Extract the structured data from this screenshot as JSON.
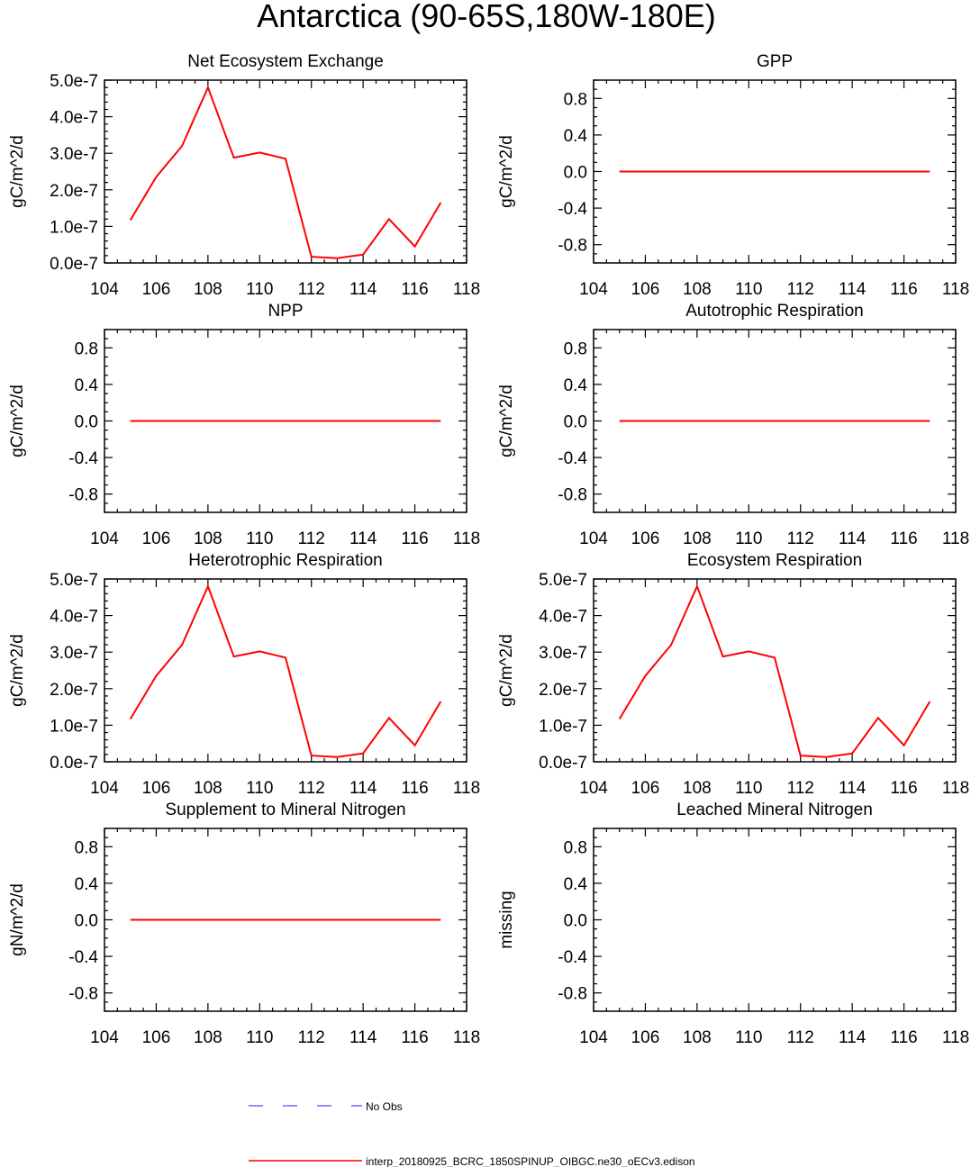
{
  "main_title": "Antarctica (90-65S,180W-180E)",
  "colors": {
    "model": "#ff0000",
    "obs": "#6a6aff",
    "axis": "#000000"
  },
  "legend": {
    "obs_label": "No Obs",
    "model_label": "interp_20180925_BCRC_1850SPINUP_OIBGC.ne30_oECv3.edison"
  },
  "chart_data": [
    {
      "type": "line",
      "title": "Net Ecosystem Exchange",
      "ylabel": "gC/m^2/d",
      "xlim": [
        104,
        118
      ],
      "ylim": [
        0,
        5e-07
      ],
      "xticks": [
        "104",
        "106",
        "108",
        "110",
        "112",
        "114",
        "116",
        "118"
      ],
      "yticks": [
        "0.0e-7",
        "1.0e-7",
        "2.0e-7",
        "3.0e-7",
        "4.0e-7",
        "5.0e-7"
      ],
      "series": [
        {
          "x": [
            105,
            106,
            107,
            108,
            109,
            110,
            111,
            112,
            113,
            114,
            115,
            116,
            117
          ],
          "values": [
            1.17e-07,
            2.35e-07,
            3.2e-07,
            4.8e-07,
            2.88e-07,
            3.02e-07,
            2.85e-07,
            1.7e-08,
            1.3e-08,
            2.3e-08,
            1.2e-07,
            4.5e-08,
            1.65e-07
          ]
        }
      ]
    },
    {
      "type": "line",
      "title": "GPP",
      "ylabel": "gC/m^2/d",
      "xlim": [
        104,
        118
      ],
      "ylim": [
        -1,
        1
      ],
      "xticks": [
        "104",
        "106",
        "108",
        "110",
        "112",
        "114",
        "116",
        "118"
      ],
      "yticks": [
        "-0.8",
        "-0.4",
        "0.0",
        "0.4",
        "0.8"
      ],
      "series": [
        {
          "x": [
            105,
            117
          ],
          "values": [
            0,
            0
          ]
        }
      ]
    },
    {
      "type": "line",
      "title": "NPP",
      "ylabel": "gC/m^2/d",
      "xlim": [
        104,
        118
      ],
      "ylim": [
        -1,
        1
      ],
      "xticks": [
        "104",
        "106",
        "108",
        "110",
        "112",
        "114",
        "116",
        "118"
      ],
      "yticks": [
        "-0.8",
        "-0.4",
        "0.0",
        "0.4",
        "0.8"
      ],
      "series": [
        {
          "x": [
            105,
            117
          ],
          "values": [
            0,
            0
          ]
        }
      ]
    },
    {
      "type": "line",
      "title": "Autotrophic Respiration",
      "ylabel": "gC/m^2/d",
      "xlim": [
        104,
        118
      ],
      "ylim": [
        -1,
        1
      ],
      "xticks": [
        "104",
        "106",
        "108",
        "110",
        "112",
        "114",
        "116",
        "118"
      ],
      "yticks": [
        "-0.8",
        "-0.4",
        "0.0",
        "0.4",
        "0.8"
      ],
      "series": [
        {
          "x": [
            105,
            117
          ],
          "values": [
            0,
            0
          ]
        }
      ]
    },
    {
      "type": "line",
      "title": "Heterotrophic Respiration",
      "ylabel": "gC/m^2/d",
      "xlim": [
        104,
        118
      ],
      "ylim": [
        0,
        5e-07
      ],
      "xticks": [
        "104",
        "106",
        "108",
        "110",
        "112",
        "114",
        "116",
        "118"
      ],
      "yticks": [
        "0.0e-7",
        "1.0e-7",
        "2.0e-7",
        "3.0e-7",
        "4.0e-7",
        "5.0e-7"
      ],
      "series": [
        {
          "x": [
            105,
            106,
            107,
            108,
            109,
            110,
            111,
            112,
            113,
            114,
            115,
            116,
            117
          ],
          "values": [
            1.17e-07,
            2.35e-07,
            3.2e-07,
            4.8e-07,
            2.88e-07,
            3.02e-07,
            2.85e-07,
            1.7e-08,
            1.3e-08,
            2.3e-08,
            1.2e-07,
            4.5e-08,
            1.65e-07
          ]
        }
      ]
    },
    {
      "type": "line",
      "title": "Ecosystem Respiration",
      "ylabel": "gC/m^2/d",
      "xlim": [
        104,
        118
      ],
      "ylim": [
        0,
        5e-07
      ],
      "xticks": [
        "104",
        "106",
        "108",
        "110",
        "112",
        "114",
        "116",
        "118"
      ],
      "yticks": [
        "0.0e-7",
        "1.0e-7",
        "2.0e-7",
        "3.0e-7",
        "4.0e-7",
        "5.0e-7"
      ],
      "series": [
        {
          "x": [
            105,
            106,
            107,
            108,
            109,
            110,
            111,
            112,
            113,
            114,
            115,
            116,
            117
          ],
          "values": [
            1.17e-07,
            2.35e-07,
            3.2e-07,
            4.8e-07,
            2.88e-07,
            3.02e-07,
            2.85e-07,
            1.7e-08,
            1.3e-08,
            2.3e-08,
            1.2e-07,
            4.5e-08,
            1.65e-07
          ]
        }
      ]
    },
    {
      "type": "line",
      "title": "Supplement to Mineral Nitrogen",
      "ylabel": "gN/m^2/d",
      "xlim": [
        104,
        118
      ],
      "ylim": [
        -1,
        1
      ],
      "xticks": [
        "104",
        "106",
        "108",
        "110",
        "112",
        "114",
        "116",
        "118"
      ],
      "yticks": [
        "-0.8",
        "-0.4",
        "0.0",
        "0.4",
        "0.8"
      ],
      "series": [
        {
          "x": [
            105,
            117
          ],
          "values": [
            0,
            0
          ]
        }
      ]
    },
    {
      "type": "line",
      "title": "Leached Mineral Nitrogen",
      "ylabel": "missing",
      "xlim": [
        104,
        118
      ],
      "ylim": [
        -1,
        1
      ],
      "xticks": [
        "104",
        "106",
        "108",
        "110",
        "112",
        "114",
        "116",
        "118"
      ],
      "yticks": [
        "-0.8",
        "-0.4",
        "0.0",
        "0.4",
        "0.8"
      ],
      "series": []
    }
  ]
}
